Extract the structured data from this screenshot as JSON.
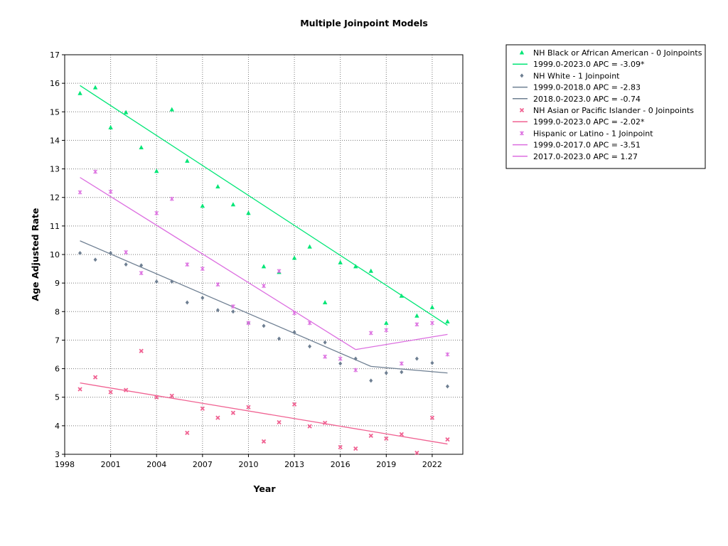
{
  "chart_data": {
    "type": "scatter",
    "title": "Multiple Joinpoint Models",
    "xlabel": "Year",
    "ylabel": "Age Adjusted Rate",
    "xlim": [
      1998,
      2024
    ],
    "ylim": [
      3,
      17
    ],
    "x_ticks": [
      1998,
      2001,
      2004,
      2007,
      2010,
      2013,
      2016,
      2019,
      2022
    ],
    "y_ticks": [
      3,
      4,
      5,
      6,
      7,
      8,
      9,
      10,
      11,
      12,
      13,
      14,
      15,
      16,
      17
    ],
    "grid": true,
    "legend_position": "right",
    "series": [
      {
        "name": "NH Black or African American - 0 Joinpoints",
        "color": "#00e676",
        "marker": "triangle",
        "x": [
          1999,
          2000,
          2001,
          2002,
          2003,
          2004,
          2005,
          2006,
          2007,
          2008,
          2009,
          2010,
          2011,
          2012,
          2013,
          2014,
          2015,
          2016,
          2017,
          2018,
          2019,
          2020,
          2021,
          2022,
          2023
        ],
        "y": [
          15.65,
          15.85,
          14.45,
          14.98,
          13.75,
          12.92,
          15.08,
          13.28,
          11.7,
          12.38,
          11.75,
          11.45,
          9.58,
          9.38,
          9.88,
          10.27,
          8.32,
          9.72,
          9.58,
          9.42,
          7.6,
          8.55,
          7.85,
          8.15,
          7.65
        ],
        "fits": [
          {
            "label": "1999.0-2023.0 APC  =  -3.09*",
            "x": [
              1999,
              2023
            ],
            "y": [
              15.92,
              7.52
            ]
          }
        ]
      },
      {
        "name": "NH White - 1 Joinpoint",
        "color": "#6e7f92",
        "marker": "diamond",
        "x": [
          1999,
          2000,
          2001,
          2002,
          2003,
          2004,
          2005,
          2006,
          2007,
          2008,
          2009,
          2010,
          2011,
          2012,
          2013,
          2014,
          2015,
          2016,
          2017,
          2018,
          2019,
          2020,
          2021,
          2022,
          2023
        ],
        "y": [
          10.05,
          9.82,
          10.05,
          9.65,
          9.62,
          9.05,
          9.05,
          8.32,
          8.48,
          8.05,
          8.0,
          7.6,
          7.5,
          7.05,
          7.28,
          6.78,
          6.92,
          6.18,
          6.35,
          5.58,
          5.85,
          5.88,
          6.35,
          6.2,
          5.38
        ],
        "fits": [
          {
            "label": "1999.0-2018.0 APC  =  -2.83",
            "x": [
              1999,
              2018
            ],
            "y": [
              10.48,
              6.08
            ]
          },
          {
            "label": "2018.0-2023.0 APC  =  -0.74",
            "x": [
              2018,
              2023
            ],
            "y": [
              6.08,
              5.85
            ]
          }
        ]
      },
      {
        "name": "NH Asian or Pacific Islander - 0 Joinpoints",
        "color": "#f06292",
        "marker": "x",
        "x": [
          1999,
          2000,
          2001,
          2002,
          2003,
          2004,
          2005,
          2006,
          2007,
          2008,
          2009,
          2010,
          2011,
          2012,
          2013,
          2014,
          2015,
          2016,
          2017,
          2018,
          2019,
          2020,
          2021,
          2022,
          2023
        ],
        "y": [
          5.28,
          5.7,
          5.18,
          5.25,
          6.62,
          5.0,
          5.05,
          3.75,
          4.6,
          4.28,
          4.45,
          4.65,
          3.45,
          4.12,
          4.75,
          3.98,
          4.1,
          3.25,
          3.2,
          3.65,
          3.55,
          3.7,
          3.05,
          4.28,
          3.52
        ],
        "fits": [
          {
            "label": "1999.0-2023.0 APC  =  -2.02*",
            "x": [
              1999,
              2023
            ],
            "y": [
              5.5,
              3.36
            ]
          }
        ]
      },
      {
        "name": "Hispanic or Latino - 1 Joinpoint",
        "color": "#dc6ee0",
        "marker": "star",
        "x": [
          1999,
          2000,
          2001,
          2002,
          2003,
          2004,
          2005,
          2006,
          2007,
          2008,
          2009,
          2010,
          2011,
          2012,
          2013,
          2014,
          2015,
          2016,
          2017,
          2018,
          2019,
          2020,
          2021,
          2022,
          2023
        ],
        "y": [
          12.18,
          12.9,
          12.2,
          10.08,
          9.35,
          11.45,
          11.95,
          9.65,
          9.5,
          8.95,
          8.18,
          7.6,
          8.9,
          9.42,
          7.95,
          7.6,
          6.42,
          6.35,
          5.95,
          7.25,
          7.35,
          6.18,
          7.55,
          7.6,
          6.5
        ],
        "fits": [
          {
            "label": "1999.0-2017.0 APC  =  -3.51",
            "x": [
              1999,
              2017
            ],
            "y": [
              12.7,
              6.67
            ]
          },
          {
            "label": "2017.0-2023.0 APC  =   1.27",
            "x": [
              2017,
              2023
            ],
            "y": [
              6.67,
              7.2
            ]
          }
        ]
      }
    ]
  }
}
